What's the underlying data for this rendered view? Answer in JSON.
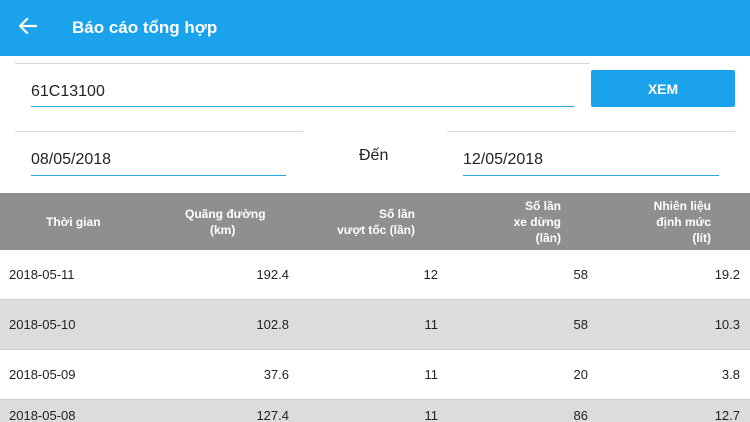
{
  "appbar": {
    "title": "Báo cáo tổng hợp",
    "back_icon": "arrow-left-icon"
  },
  "form": {
    "plate_value": "61C13100",
    "view_label": "XEM",
    "date_from": "08/05/2018",
    "to_label": "Đến",
    "date_to": "12/05/2018"
  },
  "table": {
    "headers": [
      {
        "l1": "Thời gian",
        "l2": ""
      },
      {
        "l1": "Quãng đường",
        "l2": "(km)"
      },
      {
        "l1": "Số lần",
        "l2": "vượt tốc (lần)"
      },
      {
        "l1": "Số lần",
        "l2": "xe dừng (lần)"
      },
      {
        "l1": "Nhiên liệu",
        "l2": "định mức (lít)"
      }
    ],
    "rows": [
      [
        "2018-05-11",
        "192.4",
        "12",
        "58",
        "19.2"
      ],
      [
        "2018-05-10",
        "102.8",
        "11",
        "58",
        "10.3"
      ],
      [
        "2018-05-09",
        "37.6",
        "11",
        "20",
        "3.8"
      ],
      [
        "2018-05-08",
        "127.4",
        "11",
        "86",
        "12.7"
      ]
    ]
  },
  "colors": {
    "primary": "#1aa3ec",
    "header_bg": "#8f8f8f",
    "row_alt": "#dcdcdc"
  }
}
